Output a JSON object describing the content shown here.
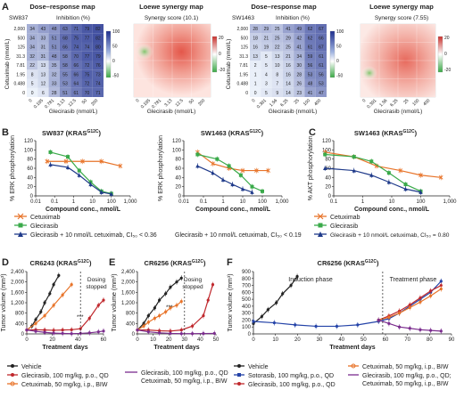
{
  "panel_letters": {
    "A": "A",
    "B": "B",
    "C": "C",
    "D": "D",
    "E": "E",
    "F": "F"
  },
  "panel_a": {
    "map1": {
      "title": "Dose–response map",
      "cell_line": "SW837",
      "scale_title": "Inhibition (%)",
      "ylabel": "Cetuximab (nmol/L)",
      "xlabel": "Glecirasib (nmol/L)",
      "x_ticks": [
        "0",
        "0.195",
        "0.781",
        "3.13",
        "12.5",
        "50",
        "200"
      ],
      "y_ticks": [
        "0",
        "0.488",
        "1.95",
        "7.81",
        "31.3",
        "125",
        "500",
        "2,000"
      ],
      "values": [
        [
          "0",
          "6",
          "28",
          "51",
          "61",
          "70",
          "71"
        ],
        [
          "5",
          "12",
          "33",
          "53",
          "64",
          "72",
          "74"
        ],
        [
          "8",
          "13",
          "32",
          "55",
          "66",
          "75",
          "73"
        ],
        [
          "22",
          "13",
          "35",
          "58",
          "66",
          "72",
          "76"
        ],
        [
          "32",
          "31",
          "48",
          "58",
          "70",
          "77",
          "79"
        ],
        [
          "34",
          "31",
          "51",
          "66",
          "74",
          "74",
          "80"
        ],
        [
          "34",
          "33",
          "51",
          "68",
          "75",
          "77",
          "82"
        ],
        [
          "34",
          "43",
          "48",
          "63",
          "71",
          "79",
          "82"
        ]
      ],
      "legend_ticks": [
        "100",
        "50",
        "0",
        "-50"
      ]
    },
    "map2": {
      "title": "Loewe synergy map",
      "scale_title": "Synergy score (10.1)",
      "xlabel": "Glecirasib (nmol/L)",
      "x_ticks": [
        "0",
        "0.195",
        "0.781",
        "3.13",
        "12.5",
        "50",
        "200"
      ],
      "legend_ticks": [
        "20",
        "0",
        "-20"
      ]
    },
    "map3": {
      "title": "Dose–response map",
      "cell_line": "SW1463",
      "scale_title": "Inhibition (%)",
      "ylabel": "Cetuximab (nmol/L)",
      "xlabel": "Glecirasib (nmol/L)",
      "x_ticks": [
        "0",
        "0.391",
        "1.56",
        "6.25",
        "25",
        "100",
        "400"
      ],
      "y_ticks": [
        "0",
        "0.488",
        "1.95",
        "7.81",
        "31.3",
        "125",
        "500",
        "2,000"
      ],
      "values": [
        [
          "0",
          "5",
          "9",
          "14",
          "23",
          "41",
          "47"
        ],
        [
          "1",
          "3",
          "7",
          "14",
          "26",
          "48",
          "53"
        ],
        [
          "1",
          "4",
          "8",
          "16",
          "28",
          "53",
          "56"
        ],
        [
          "2",
          "5",
          "10",
          "16",
          "30",
          "56",
          "61"
        ],
        [
          "13",
          "5",
          "13",
          "21",
          "34",
          "59",
          "61"
        ],
        [
          "16",
          "19",
          "22",
          "25",
          "41",
          "61",
          "67"
        ],
        [
          "18",
          "21",
          "25",
          "29",
          "42",
          "62",
          "66"
        ],
        [
          "28",
          "29",
          "25",
          "41",
          "49",
          "62",
          "67"
        ]
      ],
      "legend_ticks": [
        "100",
        "50",
        "0",
        "-50"
      ]
    },
    "map4": {
      "title": "Loewe synergy map",
      "scale_title": "Synergy score (7.55)",
      "xlabel": "Glecirasib (nmol/L)",
      "x_ticks": [
        "0",
        "0.391",
        "1.56",
        "6.25",
        "25",
        "100",
        "400"
      ],
      "legend_ticks": [
        "20",
        "0",
        "-20"
      ]
    }
  },
  "panel_b1": {
    "title": "SW837 (KRAS",
    "sup": "G12C",
    ")": ")"
  },
  "panel_b2": {
    "title": "SW1463 (KRAS",
    "sup": "G12C"
  },
  "panel_c": {
    "title": "SW1463 (KRAS",
    "sup": "G12C"
  },
  "panel_b_legend": [
    "Cetuximab",
    "Glecirasib",
    "Glecirasib + 10 nmol/L cetuximab, CI₅₀ < 0.36"
  ],
  "panel_b2_legend_last": "Glecirasib + 10 nmol/L cetuximab, CI₅₀ < 0.19",
  "panel_c_legend": [
    "Cetuximab",
    "Glecirasib",
    "Glecirasib + 10 nmol/L cetuximab, CI₅₀ = 0.80"
  ],
  "panel_d": {
    "title": "CR6243 (KRAS",
    "sup": "G12C",
    "note1": "Dosing",
    "note2": "stopped",
    "sig": "***"
  },
  "panel_e": {
    "title": "CR6256 (KRAS",
    "sup": "G12C",
    "note1": "Dosing",
    "note2": "stopped",
    "sig": "***"
  },
  "panel_f": {
    "title": "CR6256 (KRAS",
    "sup": "G12C",
    "induction": "Induction phase",
    "treatment": "Treatment phase"
  },
  "panel_de_legend": [
    "Vehicle",
    "Glecirasib, 100 mg/kg, p.o., QD",
    "Cetuximab, 50 mg/kg, i.p., BIW",
    "Glecirasib, 100 mg/kg, p.o., QD",
    "Cetuximab, 50 mg/kg, i.p., BIW"
  ],
  "panel_f_legend": [
    "Vehicle",
    "Sotorasib, 100 mg/kg, p.o., QD",
    "Glecirasib, 100 mg/kg, p.o., QD",
    "Cetuximab, 50 mg/kg, i.p., BIW",
    "Glecirasib, 100 mg/kg, p.o., QD;",
    "Cetuximab, 50 mg/kg, i.p., BIW"
  ],
  "colors": {
    "orange": "#e8742a",
    "green": "#3aaa4a",
    "navy": "#1f3a8a",
    "black": "#222222",
    "red": "#c0282d",
    "purple": "#7b2d8e",
    "blue": "#2443a8"
  },
  "chart_data": [
    {
      "type": "line",
      "title": "SW837 (KRAS G12C)",
      "xlabel": "Compound conc., nmol/L",
      "ylabel": "% ERK phosphorylation",
      "xscale": "log",
      "ylim": [
        0,
        120
      ],
      "x_ticks": [
        "0.01",
        "0.1",
        "1",
        "10",
        "100",
        "1,000"
      ],
      "y_ticks": [
        "0",
        "20",
        "40",
        "60",
        "80",
        "100",
        "120"
      ],
      "series": [
        {
          "name": "Cetuximab",
          "color": "orange",
          "x": [
            0.04,
            0.4,
            3,
            30,
            300
          ],
          "y": [
            75,
            75,
            75,
            75,
            65
          ]
        },
        {
          "name": "Glecirasib",
          "color": "green",
          "x": [
            0.06,
            0.5,
            2,
            8,
            30,
            100
          ],
          "y": [
            95,
            85,
            55,
            30,
            10,
            5
          ]
        },
        {
          "name": "Glecirasib + 10 nmol/L cetuximab, CI50 < 0.36",
          "color": "navy",
          "x": [
            0.06,
            0.5,
            2,
            8,
            30,
            100
          ],
          "y": [
            68,
            62,
            45,
            25,
            8,
            4
          ]
        }
      ]
    },
    {
      "type": "line",
      "title": "SW1463 (KRAS G12C)",
      "xlabel": "Compound conc., nmol/L",
      "ylabel": "% ERK phosphorylation",
      "xscale": "log",
      "ylim": [
        0,
        120
      ],
      "x_ticks": [
        "0.01",
        "0.1",
        "1",
        "10",
        "100",
        "1,000"
      ],
      "y_ticks": [
        "0",
        "20",
        "40",
        "60",
        "80",
        "100",
        "120"
      ],
      "series": [
        {
          "name": "Cetuximab",
          "color": "orange",
          "x": [
            0.05,
            0.3,
            2,
            10,
            50,
            200
          ],
          "y": [
            95,
            70,
            60,
            55,
            55,
            55
          ]
        },
        {
          "name": "Glecirasib",
          "color": "green",
          "x": [
            0.05,
            0.5,
            2,
            8,
            30,
            100
          ],
          "y": [
            90,
            80,
            65,
            45,
            20,
            10
          ]
        },
        {
          "name": "Glecirasib + 10 nmol/L cetuximab, CI50 < 0.19",
          "color": "navy",
          "x": [
            0.05,
            0.3,
            1,
            3,
            10,
            30
          ],
          "y": [
            65,
            50,
            35,
            25,
            15,
            8
          ]
        }
      ]
    },
    {
      "type": "line",
      "title": "SW1463 (KRAS G12C)",
      "xlabel": "Compound conc., nmol/L",
      "ylabel": "% AKT phosphorylation",
      "xscale": "log",
      "ylim": [
        0,
        120
      ],
      "x_ticks": [
        "0.1",
        "1",
        "10",
        "100",
        "1,000"
      ],
      "y_ticks": [
        "0",
        "20",
        "40",
        "60",
        "80",
        "100",
        "120"
      ],
      "series": [
        {
          "name": "Cetuximab",
          "color": "orange",
          "x": [
            0.05,
            0.5,
            3,
            20,
            100,
            500
          ],
          "y": [
            95,
            85,
            65,
            55,
            45,
            40
          ]
        },
        {
          "name": "Glecirasib",
          "color": "green",
          "x": [
            0.05,
            0.5,
            2,
            8,
            30,
            100
          ],
          "y": [
            90,
            85,
            75,
            50,
            25,
            10
          ]
        },
        {
          "name": "Glecirasib + 10 nmol/L cetuximab, CI50 = 0.80",
          "color": "navy",
          "x": [
            0.05,
            0.5,
            2,
            8,
            30,
            100
          ],
          "y": [
            60,
            55,
            45,
            30,
            15,
            8
          ]
        }
      ]
    },
    {
      "type": "line",
      "title": "CR6243 (KRAS G12C)",
      "xlabel": "Treatment days",
      "ylabel": "Tumor volume (mm³)",
      "xlim": [
        0,
        60
      ],
      "ylim": [
        0,
        2400
      ],
      "x_ticks": [
        "0",
        "20",
        "40",
        "60"
      ],
      "y_ticks": [
        "0",
        "400",
        "800",
        "1,200",
        "1,600",
        "2,000",
        "2,400"
      ],
      "series": [
        {
          "name": "Vehicle",
          "color": "black",
          "x": [
            0,
            4,
            7,
            11,
            14,
            18,
            21,
            25
          ],
          "y": [
            150,
            300,
            550,
            850,
            1200,
            1550,
            1900,
            2250
          ]
        },
        {
          "name": "Glecirasib, 100 mg/kg, p.o., QD",
          "color": "red",
          "x": [
            0,
            7,
            14,
            21,
            28,
            35,
            42,
            49,
            56,
            60
          ],
          "y": [
            150,
            160,
            150,
            140,
            150,
            160,
            200,
            600,
            1100,
            1300
          ]
        },
        {
          "name": "Cetuximab, 50 mg/kg, i.p., BIW",
          "color": "orange",
          "x": [
            0,
            7,
            14,
            21,
            28,
            35
          ],
          "y": [
            150,
            400,
            700,
            1100,
            1500,
            1900
          ]
        },
        {
          "name": "Glecirasib + Cetuximab",
          "color": "purple",
          "x": [
            0,
            7,
            14,
            21,
            28,
            35,
            42,
            49,
            56,
            60
          ],
          "y": [
            150,
            100,
            60,
            30,
            20,
            10,
            20,
            40,
            80,
            110
          ]
        }
      ]
    },
    {
      "type": "line",
      "title": "CR6256 (KRAS G12C)",
      "xlabel": "Treatment days",
      "ylabel": "Tumor volume (mm³)",
      "xlim": [
        0,
        50
      ],
      "ylim": [
        0,
        2400
      ],
      "x_ticks": [
        "0",
        "10",
        "20",
        "30",
        "40",
        "50"
      ],
      "series": [
        {
          "name": "Vehicle",
          "color": "black",
          "x": [
            0,
            4,
            7,
            11,
            14,
            18,
            21,
            25,
            28
          ],
          "y": [
            150,
            400,
            700,
            1000,
            1300,
            1550,
            1800,
            2000,
            2150
          ]
        },
        {
          "name": "Glecirasib, 100 mg/kg, p.o., QD",
          "color": "red",
          "x": [
            0,
            7,
            14,
            21,
            28,
            35,
            42,
            45,
            48
          ],
          "y": [
            150,
            150,
            120,
            110,
            150,
            300,
            700,
            1300,
            1900
          ]
        },
        {
          "name": "Cetuximab, 50 mg/kg, i.p., BIW",
          "color": "orange",
          "x": [
            0,
            4,
            7,
            11,
            14,
            18,
            21,
            25,
            28
          ],
          "y": [
            150,
            300,
            450,
            600,
            700,
            850,
            1000,
            1100,
            1250
          ]
        },
        {
          "name": "Glecirasib + Cetuximab",
          "color": "purple",
          "x": [
            0,
            7,
            14,
            21,
            28,
            35,
            42,
            49
          ],
          "y": [
            150,
            80,
            40,
            20,
            10,
            10,
            15,
            20
          ]
        }
      ]
    },
    {
      "type": "line",
      "title": "CR6256 (KRAS G12C)",
      "xlabel": "Treatment days",
      "ylabel": "Tumor volume (mm³)",
      "xlim": [
        0,
        95
      ],
      "ylim": [
        0,
        900
      ],
      "x_ticks": [
        "0",
        "10",
        "20",
        "30",
        "40",
        "50",
        "60",
        "70",
        "80",
        "90"
      ],
      "y_ticks": [
        "0",
        "100",
        "200",
        "300",
        "400",
        "500",
        "600",
        "700",
        "800",
        "900"
      ],
      "series": [
        {
          "name": "Vehicle",
          "color": "black",
          "x": [
            0,
            4,
            7,
            11,
            14,
            18,
            21
          ],
          "y": [
            150,
            250,
            350,
            450,
            580,
            700,
            830
          ]
        },
        {
          "name": "Sotorasib, 100 mg/kg, p.o., QD",
          "color": "blue",
          "x": [
            0,
            10,
            20,
            30,
            40,
            50,
            60,
            65,
            70,
            75,
            80,
            85,
            90
          ],
          "y": [
            180,
            160,
            130,
            110,
            110,
            130,
            180,
            220,
            300,
            400,
            500,
            600,
            760
          ]
        },
        {
          "name": "Glecirasib, 100 mg/kg, p.o., QD",
          "color": "red",
          "x": [
            60,
            65,
            70,
            75,
            80,
            85,
            90
          ],
          "y": [
            200,
            260,
            330,
            420,
            520,
            620,
            700
          ]
        },
        {
          "name": "Cetuximab, 50 mg/kg, i.p., BIW",
          "color": "orange",
          "x": [
            60,
            65,
            70,
            75,
            80,
            85,
            90
          ],
          "y": [
            200,
            240,
            300,
            380,
            460,
            550,
            650
          ]
        },
        {
          "name": "Glecirasib + Cetuximab",
          "color": "purple",
          "x": [
            60,
            65,
            70,
            75,
            80,
            85,
            90
          ],
          "y": [
            200,
            150,
            100,
            80,
            60,
            50,
            40
          ]
        }
      ]
    }
  ]
}
